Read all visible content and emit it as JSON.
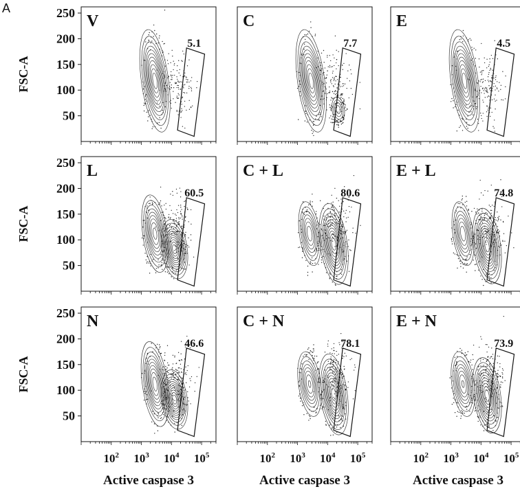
{
  "figure": {
    "panel_letter": "A"
  },
  "chart_data": {
    "type": "scatter",
    "subtype": "flow-cytometry-contour-grid",
    "xlabel": "Active caspase 3",
    "ylabel": "FSC-A",
    "x_scale": "log",
    "xlim": [
      10,
      300000
    ],
    "ylim": [
      0,
      262
    ],
    "x_ticks": [
      "10^2",
      "10^3",
      "10^4",
      "10^5"
    ],
    "x_tick_values": [
      100,
      1000,
      10000,
      100000
    ],
    "y_ticks": [
      250,
      200,
      150,
      100,
      50
    ],
    "rows": 3,
    "cols": 3,
    "panels": [
      {
        "label": "V",
        "gate_percent": "5.1",
        "populations": [
          {
            "x_log": 3.45,
            "y": 118,
            "sx": 0.17,
            "sy": 38,
            "weight": 1.0
          }
        ],
        "scatter_cluster": {
          "x_log": 4.2,
          "y": 110
        }
      },
      {
        "label": "C",
        "gate_percent": "7.7",
        "populations": [
          {
            "x_log": 3.45,
            "y": 118,
            "sx": 0.17,
            "sy": 38,
            "weight": 1.0
          },
          {
            "x_log": 4.35,
            "y": 62,
            "sx": 0.1,
            "sy": 12,
            "weight": 0.25
          }
        ],
        "scatter_cluster": {
          "x_log": 4.25,
          "y": 110
        }
      },
      {
        "label": "E",
        "gate_percent": "4.5",
        "populations": [
          {
            "x_log": 3.45,
            "y": 118,
            "sx": 0.17,
            "sy": 38,
            "weight": 1.0
          }
        ],
        "scatter_cluster": {
          "x_log": 4.2,
          "y": 105
        }
      },
      {
        "label": "L",
        "gate_percent": "60.5",
        "populations": [
          {
            "x_log": 3.45,
            "y": 112,
            "sx": 0.16,
            "sy": 30,
            "weight": 0.75
          },
          {
            "x_log": 4.1,
            "y": 82,
            "sx": 0.16,
            "sy": 22,
            "weight": 1.0
          }
        ],
        "scatter_cluster": {
          "x_log": 4.2,
          "y": 120
        }
      },
      {
        "label": "C + L",
        "gate_percent": "80.6",
        "populations": [
          {
            "x_log": 3.4,
            "y": 112,
            "sx": 0.14,
            "sy": 26,
            "weight": 0.55
          },
          {
            "x_log": 4.2,
            "y": 92,
            "sx": 0.17,
            "sy": 30,
            "weight": 1.0
          }
        ],
        "scatter_cluster": {
          "x_log": 4.3,
          "y": 125
        }
      },
      {
        "label": "E + L",
        "gate_percent": "74.8",
        "populations": [
          {
            "x_log": 3.4,
            "y": 112,
            "sx": 0.14,
            "sy": 26,
            "weight": 0.55
          },
          {
            "x_log": 4.2,
            "y": 88,
            "sx": 0.17,
            "sy": 28,
            "weight": 1.0
          }
        ],
        "scatter_cluster": {
          "x_log": 4.3,
          "y": 125
        }
      },
      {
        "label": "N",
        "gate_percent": "46.6",
        "populations": [
          {
            "x_log": 3.45,
            "y": 112,
            "sx": 0.16,
            "sy": 32,
            "weight": 0.9
          },
          {
            "x_log": 4.1,
            "y": 82,
            "sx": 0.16,
            "sy": 22,
            "weight": 1.0
          }
        ],
        "scatter_cluster": {
          "x_log": 4.2,
          "y": 115
        }
      },
      {
        "label": "C + N",
        "gate_percent": "78.1",
        "populations": [
          {
            "x_log": 3.4,
            "y": 112,
            "sx": 0.15,
            "sy": 26,
            "weight": 0.6
          },
          {
            "x_log": 4.2,
            "y": 92,
            "sx": 0.17,
            "sy": 30,
            "weight": 1.0
          }
        ],
        "scatter_cluster": {
          "x_log": 4.3,
          "y": 125
        }
      },
      {
        "label": "E + N",
        "gate_percent": "73.9",
        "populations": [
          {
            "x_log": 3.4,
            "y": 112,
            "sx": 0.15,
            "sy": 26,
            "weight": 0.6
          },
          {
            "x_log": 4.2,
            "y": 90,
            "sx": 0.17,
            "sy": 28,
            "weight": 1.0
          }
        ],
        "scatter_cluster": {
          "x_log": 4.3,
          "y": 125
        }
      }
    ],
    "gate_polygon": [
      [
        4.5,
        182
      ],
      [
        5.1,
        170
      ],
      [
        4.75,
        10
      ],
      [
        4.2,
        22
      ]
    ],
    "contour_levels": [
      0.92,
      0.82,
      0.7,
      0.58,
      0.47,
      0.37,
      0.28,
      0.2,
      0.13,
      0.07,
      0.03
    ]
  }
}
